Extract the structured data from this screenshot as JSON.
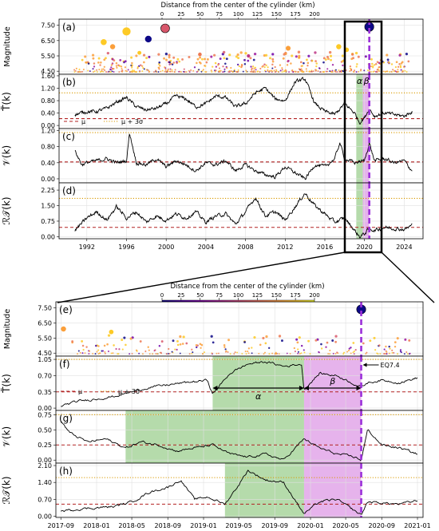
{
  "colorbar": {
    "label": "Distance from the center of the cylinder (km)",
    "ticks": [
      "0",
      "25",
      "50",
      "75",
      "100",
      "125",
      "150",
      "175",
      "200"
    ],
    "colors": [
      "#0d0887",
      "#46039f",
      "#7201a8",
      "#9c179e",
      "#bd3786",
      "#d8576b",
      "#ed7953",
      "#fb9f3a",
      "#fdca26",
      "#f0f921"
    ]
  },
  "colors": {
    "accent_red": "#b22222",
    "accent_orange": "#d99a00",
    "alpha_span": "#9ccf8f",
    "beta_span": "#dd99e6",
    "eq_line": "#9b30d9",
    "zoom_box": "#000000",
    "curve": "#000000",
    "eq_marker": "#1f1f8a"
  },
  "top": {
    "x_ticks": [
      "1992",
      "1996",
      "2000",
      "2004",
      "2008",
      "2012",
      "2016",
      "2020",
      "2024"
    ],
    "panels": [
      {
        "letter": "(a)",
        "ylabel": "Magnitude",
        "yticks": [
          "4.50",
          "5.50",
          "6.50",
          "7.50"
        ]
      },
      {
        "letter": "(b)",
        "ylabel": "T̃(k)",
        "yticks": [
          "0.00",
          "0.40",
          "0.80",
          "1.20",
          "1.60"
        ]
      },
      {
        "letter": "(c)",
        "ylabel": "𝒱(k)",
        "yticks": [
          "0.00",
          "0.40",
          "0.80",
          "1.20"
        ]
      },
      {
        "letter": "(d)",
        "ylabel": "ℛ𝒯(k)",
        "yticks": [
          "0.00",
          "0.75",
          "1.50",
          "2.25"
        ]
      }
    ],
    "legend": {
      "mu": "μ",
      "mu3s": "μ + 3σ"
    },
    "span_labels": {
      "alpha": "α",
      "beta": "β"
    }
  },
  "bottom": {
    "x_ticks": [
      "2017-09",
      "2018-01",
      "2018-05",
      "2018-09",
      "2019-01",
      "2019-05",
      "2019-09",
      "2020-01",
      "2020-05",
      "2020-09",
      "2021-01"
    ],
    "panels": [
      {
        "letter": "(e)",
        "ylabel": "Magnitude",
        "yticks": [
          "4.50",
          "5.50",
          "6.50",
          "7.50"
        ]
      },
      {
        "letter": "(f)",
        "ylabel": "T̃(k)",
        "yticks": [
          "0.00",
          "0.35",
          "0.70",
          "1.05"
        ]
      },
      {
        "letter": "(g)",
        "ylabel": "𝒱(k)",
        "yticks": [
          "0.00",
          "0.25",
          "0.50",
          "0.75"
        ]
      },
      {
        "letter": "(h)",
        "ylabel": "ℛ𝒯(k)",
        "yticks": [
          "0.00",
          "0.70",
          "1.40",
          "2.10"
        ]
      }
    ],
    "legend": {
      "mu": "μ",
      "mu3s": "μ + 3σ"
    },
    "span_labels": {
      "alpha": "α",
      "beta": "β"
    },
    "eq_label": "EQ7.4"
  },
  "chart_data": {
    "type": "line",
    "main_event": {
      "date": "2020-06-23",
      "magnitude": 7.4
    },
    "top": {
      "x_range": [
        1989.2,
        2025.9
      ],
      "x_ticks": [
        1992,
        1996,
        2000,
        2004,
        2008,
        2012,
        2016,
        2020,
        2024
      ],
      "zoom_window": [
        2017.67,
        2021.0
      ],
      "alpha_span": [
        2019.17,
        2019.83
      ],
      "beta_span": [
        2019.83,
        2020.48
      ],
      "eq_date": 2020.48,
      "magnitude": {
        "ylim": [
          4.3,
          7.9
        ],
        "notable_events": [
          {
            "x": 1993.7,
            "mag": 6.4,
            "dist": 180
          },
          {
            "x": 1994.6,
            "mag": 6.1,
            "dist": 175
          },
          {
            "x": 1996.0,
            "mag": 7.1,
            "dist": 190
          },
          {
            "x": 1997.3,
            "mag": 5.7,
            "dist": 185
          },
          {
            "x": 1998.2,
            "mag": 6.6,
            "dist": 10
          },
          {
            "x": 1999.9,
            "mag": 7.3,
            "dist": 120
          },
          {
            "x": 2003.4,
            "mag": 5.6,
            "dist": 150
          },
          {
            "x": 2008.3,
            "mag": 5.5,
            "dist": 100
          },
          {
            "x": 2012.3,
            "mag": 6.0,
            "dist": 175
          },
          {
            "x": 2017.4,
            "mag": 6.1,
            "dist": 190
          },
          {
            "x": 2018.2,
            "mag": 5.9,
            "dist": 180
          },
          {
            "x": 2020.48,
            "mag": 7.4,
            "dist": 5
          }
        ]
      },
      "T": {
        "ylim": [
          -0.1,
          1.65
        ],
        "mu": 0.22,
        "mu_plus_3sigma": 1.05,
        "x": [
          1990.8,
          1992,
          1993,
          1994,
          1995,
          1996,
          1997,
          1998,
          1999,
          2000,
          2001,
          2002,
          2003,
          2004,
          2005,
          2006,
          2007,
          2008,
          2009,
          2010,
          2011,
          2012,
          2013,
          2014,
          2015,
          2016,
          2017,
          2018,
          2019,
          2019.5,
          2020,
          2020.48,
          2021,
          2022,
          2023,
          2024,
          2024.8
        ],
        "y": [
          0.35,
          0.45,
          0.45,
          0.55,
          0.75,
          0.9,
          0.6,
          0.5,
          0.55,
          0.7,
          0.95,
          0.85,
          0.6,
          0.7,
          0.95,
          0.9,
          0.6,
          0.7,
          1.05,
          1.2,
          0.85,
          0.8,
          1.4,
          1.5,
          0.7,
          0.45,
          0.35,
          0.7,
          0.4,
          0.1,
          0.25,
          0.55,
          0.3,
          0.4,
          0.35,
          0.3,
          0.45
        ]
      },
      "V": {
        "ylim": [
          -0.1,
          1.25
        ],
        "mu": 0.42,
        "mu_plus_3sigma": 1.15,
        "x": [
          1990.8,
          1991.5,
          1992,
          1993,
          1994,
          1995,
          1996,
          1996.3,
          1997,
          1998,
          1999,
          2000,
          2001,
          2002,
          2003,
          2004,
          2005,
          2006,
          2007,
          2008,
          2009,
          2010,
          2011,
          2012,
          2013,
          2014,
          2015,
          2016,
          2017,
          2017.5,
          2018,
          2019,
          2020,
          2020.48,
          2021,
          2022,
          2023,
          2024,
          2024.8
        ],
        "y": [
          0.7,
          0.35,
          0.4,
          0.45,
          0.5,
          0.4,
          0.45,
          1.15,
          0.4,
          0.35,
          0.5,
          0.3,
          0.45,
          0.35,
          0.2,
          0.4,
          0.35,
          0.45,
          0.2,
          0.35,
          0.2,
          0.1,
          0.05,
          0.3,
          0.15,
          0.0,
          0.35,
          0.3,
          0.5,
          0.9,
          0.5,
          0.4,
          0.45,
          0.9,
          0.45,
          0.5,
          0.4,
          0.45,
          0.2
        ]
      },
      "RT": {
        "ylim": [
          -0.1,
          2.6
        ],
        "mu": 0.45,
        "mu_plus_3sigma": 1.85,
        "x": [
          1990.8,
          1992,
          1993,
          1994,
          1995,
          1996,
          1997,
          1998,
          1999,
          2000,
          2001,
          2002,
          2003,
          2004,
          2005,
          2006,
          2007,
          2008,
          2009,
          2010,
          2011,
          2012,
          2013,
          2014,
          2015,
          2016,
          2017,
          2018,
          2019,
          2019.5,
          2020,
          2020.48,
          2021,
          2022,
          2023,
          2024,
          2024.8
        ],
        "y": [
          0.3,
          0.9,
          1.2,
          0.8,
          1.45,
          0.9,
          1.2,
          0.7,
          1.0,
          0.8,
          1.1,
          0.9,
          1.2,
          0.7,
          1.0,
          1.1,
          0.6,
          1.2,
          1.9,
          1.0,
          1.2,
          0.8,
          1.45,
          2.1,
          1.5,
          1.1,
          0.7,
          0.9,
          0.3,
          0.0,
          0.15,
          0.4,
          0.3,
          0.45,
          0.4,
          0.35,
          0.55
        ]
      }
    },
    "bottom": {
      "x_range": [
        "2017-08-15",
        "2021-01-20"
      ],
      "x_ticks": [
        "2017-09",
        "2018-01",
        "2018-05",
        "2018-09",
        "2019-01",
        "2019-05",
        "2019-09",
        "2020-01",
        "2020-05",
        "2020-09",
        "2021-01"
      ],
      "alpha_arrow": [
        "2019-02-01",
        "2019-12-10"
      ],
      "beta_arrow": [
        "2019-12-10",
        "2020-06-23"
      ],
      "f_span": [
        "2019-02-01",
        "2019-12-10"
      ],
      "f_beta_span": [
        "2019-12-10",
        "2020-06-23"
      ],
      "g_span": [
        "2018-04-10",
        "2019-12-10"
      ],
      "g_beta_span": [
        "2019-12-10",
        "2020-06-23"
      ],
      "h_span": [
        "2019-03-15",
        "2019-12-10"
      ],
      "h_beta_span": [
        "2019-12-10",
        "2020-06-23"
      ],
      "eq_date": "2020-06-23",
      "magnitude": {
        "ylim": [
          4.3,
          7.9
        ],
        "notable_events": [
          {
            "x": "2017-09-10",
            "mag": 6.1,
            "dist": 170
          },
          {
            "x": "2018-02-20",
            "mag": 5.9,
            "dist": 185
          },
          {
            "x": "2020-06-23",
            "mag": 7.4,
            "dist": 5
          }
        ]
      },
      "T": {
        "ylim": [
          -0.05,
          1.12
        ],
        "mu": 0.35,
        "mu_plus_3sigma": 1.05,
        "x": [
          "2017-09-01",
          "2017-11-01",
          "2018-01-01",
          "2018-03-01",
          "2018-05-01",
          "2018-07-01",
          "2018-09-01",
          "2018-11-01",
          "2019-01-15",
          "2019-02-01",
          "2019-04-01",
          "2019-06-01",
          "2019-08-01",
          "2019-10-01",
          "2019-12-01",
          "2019-12-10",
          "2020-02-01",
          "2020-04-01",
          "2020-06-23",
          "2020-07-15",
          "2020-09-01",
          "2020-11-01",
          "2021-01-01"
        ],
        "y": [
          0.05,
          0.15,
          0.2,
          0.25,
          0.35,
          0.45,
          0.5,
          0.55,
          0.6,
          0.3,
          0.75,
          0.95,
          1.0,
          0.9,
          0.95,
          0.4,
          0.75,
          0.7,
          0.45,
          0.55,
          0.6,
          0.55,
          0.65
        ]
      },
      "V": {
        "ylim": [
          -0.05,
          0.82
        ],
        "mu": 0.25,
        "mu_plus_3sigma": 0.75,
        "x": [
          "2017-09-01",
          "2017-10-01",
          "2017-12-01",
          "2018-02-01",
          "2018-04-10",
          "2018-06-01",
          "2018-08-01",
          "2018-10-01",
          "2018-12-01",
          "2019-02-01",
          "2019-04-01",
          "2019-06-01",
          "2019-08-01",
          "2019-10-01",
          "2019-12-10",
          "2020-02-01",
          "2020-04-01",
          "2020-06-01",
          "2020-06-23",
          "2020-07-15",
          "2020-09-01",
          "2020-11-01",
          "2021-01-01"
        ],
        "y": [
          0.65,
          0.45,
          0.3,
          0.35,
          0.2,
          0.3,
          0.25,
          0.15,
          0.2,
          0.25,
          0.1,
          0.05,
          0.1,
          0.0,
          0.35,
          0.2,
          0.1,
          0.05,
          0.0,
          0.5,
          0.25,
          0.2,
          0.1
        ]
      },
      "RT": {
        "ylim": [
          -0.05,
          2.2
        ],
        "mu": 0.5,
        "mu_plus_3sigma": 1.6,
        "x": [
          "2017-09-01",
          "2017-11-01",
          "2018-01-01",
          "2018-03-01",
          "2018-05-01",
          "2018-07-01",
          "2018-09-01",
          "2018-10-15",
          "2018-12-01",
          "2019-01-15",
          "2019-03-15",
          "2019-05-01",
          "2019-06-01",
          "2019-08-01",
          "2019-10-01",
          "2019-12-10",
          "2020-02-01",
          "2020-04-01",
          "2020-06-23",
          "2020-07-15",
          "2020-09-01",
          "2020-11-01",
          "2021-01-01"
        ],
        "y": [
          0.2,
          0.3,
          0.35,
          0.4,
          0.6,
          1.0,
          1.2,
          1.5,
          0.7,
          0.8,
          0.5,
          1.3,
          1.9,
          1.5,
          1.4,
          0.1,
          0.6,
          0.7,
          0.05,
          0.6,
          0.55,
          0.5,
          0.65
        ]
      }
    }
  }
}
